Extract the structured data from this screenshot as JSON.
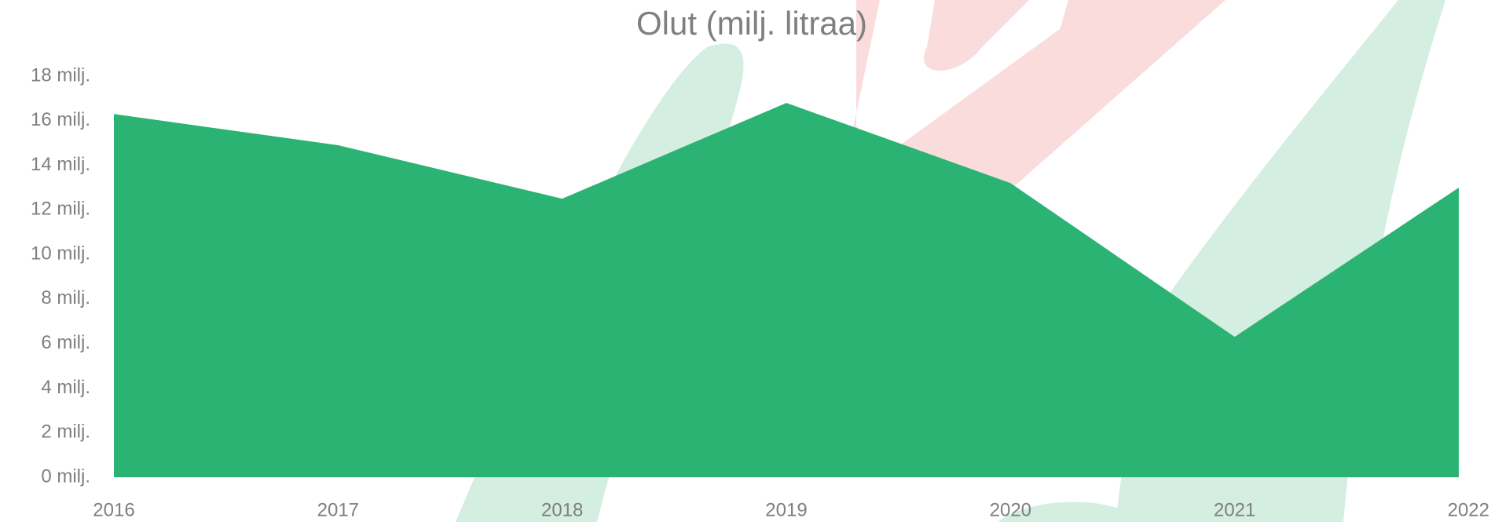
{
  "chart_data": {
    "type": "area",
    "title": "Olut (milj. litraa)",
    "categories": [
      "2016",
      "2017",
      "2018",
      "2019",
      "2020",
      "2021",
      "2022"
    ],
    "series": [
      {
        "name": "Olut",
        "color": "#2ab373",
        "values": [
          16.3,
          14.9,
          12.5,
          16.8,
          13.2,
          6.3,
          13.0
        ]
      }
    ],
    "ylim": [
      0,
      18
    ],
    "yticks": [
      {
        "value": 0,
        "label": "0 milj."
      },
      {
        "value": 2,
        "label": "2 milj."
      },
      {
        "value": 4,
        "label": "4 milj."
      },
      {
        "value": 6,
        "label": "6 milj."
      },
      {
        "value": 8,
        "label": "8 milj."
      },
      {
        "value": 10,
        "label": "10 milj."
      },
      {
        "value": 12,
        "label": "12 milj."
      },
      {
        "value": 14,
        "label": "14 milj."
      },
      {
        "value": 16,
        "label": "16 milj."
      },
      {
        "value": 18,
        "label": "18 milj."
      }
    ]
  }
}
